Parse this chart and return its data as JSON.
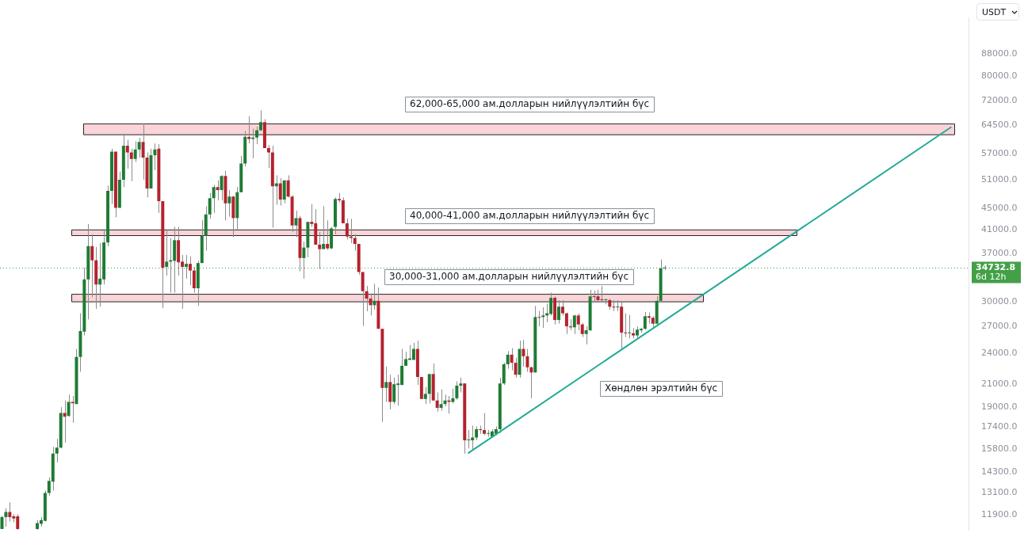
{
  "chart_data": {
    "type": "candlestick",
    "categories": [
      null,
      null,
      null,
      null,
      null,
      null,
      null,
      null,
      null,
      null,
      null,
      null,
      null,
      null,
      null,
      null,
      null,
      null,
      null,
      null,
      null,
      null,
      null,
      null,
      null,
      null,
      null,
      null,
      null,
      null,
      null,
      null,
      null,
      null,
      null,
      null,
      null,
      null,
      null,
      null,
      null,
      null,
      null,
      null,
      null,
      null,
      null,
      null,
      null,
      null,
      null,
      null,
      null,
      null,
      null,
      null,
      null,
      null,
      null,
      null,
      null,
      null,
      null,
      null,
      null,
      null,
      null,
      null,
      null,
      null,
      null,
      null,
      null,
      null,
      null,
      null,
      null,
      null,
      null,
      null,
      null,
      null,
      null,
      null,
      null,
      null,
      null,
      null,
      null,
      null,
      null,
      null,
      null,
      null,
      null,
      null,
      null,
      null,
      null,
      null,
      null,
      null,
      null,
      null,
      null,
      null,
      null,
      null,
      null,
      null,
      null,
      null,
      null,
      null,
      null,
      null,
      null,
      null,
      null,
      null,
      null,
      null,
      null,
      null,
      null,
      null,
      null,
      null,
      null,
      null,
      null,
      null,
      null,
      null,
      null,
      null,
      null,
      null,
      null,
      null,
      null,
      null,
      null,
      null,
      null,
      null,
      null,
      null,
      null,
      null,
      null,
      null,
      null,
      null,
      null,
      null,
      null,
      null,
      null,
      null,
      null,
      null,
      null,
      null,
      null,
      null,
      null,
      null,
      null,
      null,
      null,
      null,
      null,
      null,
      null,
      null,
      null,
      null,
      null,
      null,
      null,
      null,
      null,
      null,
      null,
      null,
      null,
      null,
      null,
      null,
      null,
      null,
      null,
      null,
      null,
      null,
      null,
      null,
      null,
      null,
      null,
      null,
      null,
      null,
      null,
      null,
      null,
      null,
      null,
      null,
      null,
      null,
      null,
      null,
      null,
      null,
      null,
      null,
      null,
      null,
      null,
      null,
      null,
      null,
      null,
      null,
      null,
      null,
      null,
      null,
      null,
      null,
      null,
      null,
      null,
      null,
      null,
      null,
      null,
      null,
      null,
      null,
      null,
      null,
      null,
      null,
      null
    ],
    "ohlc": [
      [
        11180,
        11840,
        11180,
        11770
      ],
      [
        11770,
        12230,
        11290,
        12040
      ],
      [
        12040,
        12550,
        11550,
        11770
      ],
      [
        11810,
        11920,
        11510,
        11700
      ],
      [
        11810,
        11920,
        11150,
        11180
      ],
      null,
      null,
      null,
      null,
      [
        11180,
        11620,
        11150,
        11470
      ],
      [
        11430,
        11770,
        11290,
        11620
      ],
      [
        11580,
        13210,
        11550,
        13080
      ],
      [
        13080,
        13990,
        12920,
        13780
      ],
      [
        13730,
        15970,
        13210,
        15510
      ],
      [
        15510,
        16540,
        14930,
        15920
      ],
      [
        15920,
        18980,
        15870,
        18500
      ],
      [
        18500,
        19540,
        16270,
        18210
      ],
      [
        18270,
        20050,
        18210,
        19420
      ],
      [
        19420,
        19920,
        17740,
        19300
      ],
      [
        19240,
        24450,
        19240,
        23610
      ],
      [
        23610,
        28540,
        22140,
        26420
      ],
      [
        26360,
        34800,
        25920,
        33070
      ],
      [
        33070,
        42070,
        27800,
        38210
      ],
      [
        38210,
        40220,
        30610,
        35930
      ],
      [
        35930,
        38090,
        29090,
        32340
      ],
      [
        32340,
        38700,
        29370,
        33180
      ],
      [
        33070,
        41120,
        32340,
        38830
      ],
      [
        38830,
        49710,
        38210,
        48600
      ],
      [
        48600,
        58350,
        45870,
        57610
      ],
      [
        57610,
        57610,
        43300,
        45130
      ],
      [
        45130,
        52810,
        45130,
        51000
      ],
      [
        51000,
        61830,
        49390,
        59100
      ],
      [
        59100,
        60640,
        53510,
        57420
      ],
      [
        57420,
        58350,
        50670,
        55790
      ],
      [
        55790,
        60250,
        55070,
        58170
      ],
      [
        58170,
        61190,
        56150,
        60060
      ],
      [
        60060,
        65070,
        51000,
        56150
      ],
      [
        56150,
        57420,
        47210,
        49070
      ],
      [
        49070,
        58350,
        49070,
        56700
      ],
      [
        56700,
        59680,
        53170,
        58170
      ],
      [
        58350,
        59490,
        44140,
        46450
      ],
      [
        46450,
        46450,
        29180,
        34800
      ],
      [
        34920,
        40870,
        33610,
        35720
      ],
      [
        35720,
        39590,
        31220,
        35950
      ],
      [
        35840,
        41540,
        31220,
        39210
      ],
      [
        39210,
        41540,
        33610,
        35610
      ],
      [
        35720,
        36760,
        29090,
        34920
      ],
      [
        34920,
        36760,
        33180,
        35380
      ],
      [
        35380,
        36530,
        32240,
        34370
      ],
      [
        34370,
        34920,
        31220,
        31820
      ],
      [
        31820,
        35840,
        29470,
        35500
      ],
      [
        35500,
        42750,
        35500,
        39960
      ],
      [
        39960,
        45440,
        37470,
        43850
      ],
      [
        43850,
        48140,
        43020,
        47060
      ],
      [
        47060,
        49870,
        44140,
        49390
      ],
      [
        49390,
        50840,
        46620,
        48750
      ],
      [
        48750,
        51980,
        46620,
        51820
      ],
      [
        51820,
        53000,
        42740,
        46020
      ],
      [
        46020,
        48750,
        43440,
        47370
      ],
      [
        47370,
        47520,
        39710,
        43160
      ],
      [
        43160,
        49390,
        41120,
        48290
      ],
      [
        48290,
        56510,
        48290,
        54710
      ],
      [
        54710,
        63010,
        54030,
        61430
      ],
      [
        61430,
        67190,
        59680,
        60840
      ],
      [
        60840,
        63640,
        55970,
        61230
      ],
      [
        61230,
        64240,
        59490,
        63230
      ],
      [
        63230,
        68930,
        63020,
        65500
      ],
      [
        65500,
        66340,
        58520,
        58520
      ],
      [
        58520,
        59300,
        53680,
        57420
      ],
      [
        57420,
        59100,
        41400,
        49550
      ],
      [
        49550,
        51980,
        45720,
        50180
      ],
      [
        50180,
        51330,
        45570,
        46770
      ],
      [
        46770,
        50840,
        46020,
        50840
      ],
      [
        50840,
        51980,
        47210,
        47370
      ],
      [
        47370,
        47680,
        40610,
        41800
      ],
      [
        41800,
        44580,
        39710,
        43160
      ],
      [
        43160,
        43580,
        34250,
        36290
      ],
      [
        36290,
        38960,
        33180,
        37970
      ],
      [
        37970,
        42460,
        36410,
        42460
      ],
      [
        42460,
        45870,
        41540,
        42070
      ],
      [
        42200,
        44860,
        38460,
        38460
      ],
      [
        38460,
        40610,
        34590,
        37720
      ],
      [
        37720,
        45440,
        37720,
        38580
      ],
      [
        38580,
        42740,
        37600,
        37840
      ],
      [
        37840,
        41540,
        37720,
        41260
      ],
      [
        41540,
        47210,
        40220,
        46920
      ],
      [
        46920,
        48140,
        46170,
        46620
      ],
      [
        46620,
        47210,
        42200,
        42200
      ],
      [
        42200,
        43020,
        39330,
        39840
      ],
      [
        39840,
        43020,
        38700,
        39590
      ],
      [
        39590,
        40220,
        37470,
        38580
      ],
      [
        38580,
        38580,
        33720,
        34140
      ],
      [
        34140,
        34140,
        27010,
        31420
      ],
      [
        31420,
        32140,
        28800,
        30420
      ],
      [
        30420,
        31120,
        28270,
        29560
      ],
      [
        29560,
        32450,
        29000,
        30130
      ],
      [
        30130,
        31930,
        26680,
        26680
      ],
      [
        26680,
        26680,
        17800,
        20640
      ],
      [
        20640,
        22650,
        19420,
        21170
      ],
      [
        21170,
        21850,
        18800,
        19420
      ],
      [
        19420,
        21580,
        19240,
        20970
      ],
      [
        20900,
        21850,
        19110,
        21040
      ],
      [
        20900,
        24450,
        20900,
        22720
      ],
      [
        22720,
        24140,
        22720,
        23390
      ],
      [
        23310,
        24870,
        23310,
        23460
      ],
      [
        23310,
        25100,
        23310,
        24450
      ],
      [
        24450,
        25340,
        20900,
        21640
      ],
      [
        21640,
        21640,
        19670,
        19670
      ],
      [
        19670,
        20700,
        19240,
        20110
      ],
      [
        20110,
        21920,
        19300,
        21920
      ],
      [
        21920,
        22940,
        19540,
        19540
      ],
      [
        19540,
        20240,
        18620,
        18920
      ],
      [
        18920,
        20500,
        18680,
        19240
      ],
      [
        19240,
        20050,
        19050,
        19540
      ],
      [
        19540,
        19920,
        18450,
        19420
      ],
      [
        19420,
        20570,
        19300,
        19730
      ],
      [
        19730,
        21240,
        19610,
        20840
      ],
      [
        20840,
        21580,
        20240,
        21040
      ],
      [
        21040,
        21040,
        15510,
        16430
      ],
      [
        16430,
        17190,
        15870,
        16480
      ],
      [
        16430,
        17520,
        15770,
        16640
      ],
      [
        16640,
        17460,
        16430,
        17240
      ],
      [
        17240,
        17520,
        16910,
        17190
      ],
      [
        17190,
        18500,
        16810,
        16910
      ],
      [
        16910,
        17190,
        16700,
        16970
      ],
      [
        16700,
        17240,
        16640,
        17080
      ],
      [
        16910,
        17460,
        16810,
        17240
      ],
      [
        17240,
        21580,
        16970,
        21040
      ],
      [
        21040,
        23020,
        20900,
        22870
      ],
      [
        22870,
        24220,
        22430,
        23840
      ],
      [
        23840,
        24530,
        22280,
        23020
      ],
      [
        23020,
        23530,
        21580,
        21850
      ],
      [
        21850,
        25340,
        21580,
        24450
      ],
      [
        24450,
        25420,
        22650,
        23680
      ],
      [
        23680,
        24450,
        22140,
        22570
      ],
      [
        22570,
        22650,
        19730,
        22070
      ],
      [
        22070,
        29470,
        22070,
        28080
      ],
      [
        28080,
        28820,
        26970,
        27990
      ],
      [
        28080,
        29280,
        26770,
        28270
      ],
      [
        28270,
        29750,
        27450,
        28540
      ],
      [
        28450,
        31220,
        28270,
        30520
      ],
      [
        30520,
        30720,
        27190,
        27720
      ],
      [
        27720,
        30220,
        27280,
        29370
      ],
      [
        29370,
        30220,
        28270,
        28540
      ],
      [
        28540,
        28630,
        26080,
        26970
      ],
      [
        26970,
        27810,
        26510,
        26850
      ],
      [
        26850,
        28360,
        26080,
        28270
      ],
      [
        28270,
        28540,
        26510,
        27190
      ],
      [
        27190,
        27370,
        25750,
        26080
      ],
      [
        26080,
        26970,
        24940,
        26510
      ],
      [
        26510,
        31620,
        26420,
        30720
      ],
      [
        30720,
        31520,
        29940,
        30620
      ],
      [
        30720,
        31620,
        29940,
        30220
      ],
      [
        30320,
        32140,
        29940,
        30220
      ],
      [
        30220,
        30420,
        29660,
        30320
      ],
      [
        30220,
        30420,
        29000,
        29370
      ],
      [
        29370,
        30220,
        28820,
        29280
      ],
      [
        29280,
        30220,
        28820,
        29370
      ],
      [
        29370,
        29940,
        24450,
        26250
      ],
      [
        26250,
        28540,
        25750,
        26170
      ],
      [
        26170,
        28360,
        25590,
        26250
      ],
      [
        26170,
        26770,
        25590,
        25920
      ],
      [
        25920,
        26970,
        25590,
        26590
      ],
      [
        26510,
        26770,
        26250,
        26680
      ],
      [
        26680,
        28720,
        26590,
        28180
      ],
      [
        28180,
        28630,
        27280,
        27990
      ],
      [
        27990,
        28180,
        26770,
        27280
      ],
      [
        27280,
        30720,
        27190,
        30130
      ],
      [
        30130,
        36060,
        30130,
        34700
      ],
      [
        34700,
        35150,
        34480,
        34732.8
      ],
      null,
      null,
      null,
      null,
      null,
      null,
      null,
      null,
      null,
      null,
      null,
      null,
      null,
      null,
      null,
      null,
      null,
      null,
      null,
      null,
      null,
      null,
      null,
      null,
      null,
      null,
      null,
      null,
      null,
      null,
      null,
      null,
      null,
      null,
      null,
      null,
      null,
      null,
      null,
      null,
      null,
      null,
      null,
      null,
      null,
      null,
      null,
      null,
      null,
      null,
      null,
      null,
      null,
      null,
      null,
      null,
      null,
      null,
      null,
      null,
      null,
      null,
      null,
      null,
      null,
      null,
      null,
      null,
      null,
      null,
      null,
      null,
      null,
      null,
      null,
      null,
      null
    ],
    "colors": [
      "#1e7b34",
      "#1e7b34",
      "#b3222d",
      "#b3222d",
      "#b3222d",
      null,
      null,
      null,
      null,
      "#1e7b34",
      "#1e7b34",
      "#1e7b34",
      "#1e7b34",
      "#1e7b34",
      "#1e7b34",
      "#1e7b34",
      "#b3222d",
      "#1e7b34",
      "#b3222d",
      "#1e7b34",
      "#1e7b34",
      "#1e7b34",
      "#1e7b34",
      "#b3222d",
      "#b3222d",
      "#1e7b34",
      "#1e7b34",
      "#1e7b34",
      "#1e7b34",
      "#b3222d",
      "#1e7b34",
      "#1e7b34",
      "#b3222d",
      "#b3222d",
      "#1e7b34",
      "#1e7b34",
      "#b3222d",
      "#b3222d",
      "#1e7b34",
      "#1e7b34",
      "#b3222d",
      "#b3222d",
      "#1e7b34",
      "#1e7b34",
      "#1e7b34",
      "#b3222d",
      "#b3222d",
      "#1e7b34",
      "#b3222d",
      "#b3222d",
      "#1e7b34",
      "#1e7b34",
      "#1e7b34",
      "#1e7b34",
      "#1e7b34",
      "#b3222d",
      "#1e7b34",
      "#b3222d",
      "#1e7b34",
      "#b3222d",
      "#1e7b34",
      "#1e7b34",
      "#1e7b34",
      "#b3222d",
      "#1e7b34",
      "#1e7b34",
      "#1e7b34",
      "#b3222d",
      "#b3222d",
      "#b3222d",
      "#1e7b34",
      "#b3222d",
      "#1e7b34",
      "#b3222d",
      "#b3222d",
      "#1e7b34",
      "#b3222d",
      "#1e7b34",
      "#1e7b34",
      "#b3222d",
      "#b3222d",
      "#b3222d",
      "#1e7b34",
      "#b3222d",
      "#1e7b34",
      "#1e7b34",
      "#b3222d",
      "#b3222d",
      "#b3222d",
      "#b3222d",
      "#b3222d",
      "#b3222d",
      "#b3222d",
      "#b3222d",
      "#b3222d",
      "#1e7b34",
      "#b3222d",
      "#b3222d",
      "#1e7b34",
      "#b3222d",
      "#1e7b34",
      "#1e7b34",
      "#1e7b34",
      "#1e7b34",
      "#1e7b34",
      "#1e7b34",
      "#b3222d",
      "#b3222d",
      "#1e7b34",
      "#1e7b34",
      "#b3222d",
      "#b3222d",
      "#1e7b34",
      "#1e7b34",
      "#b3222d",
      "#1e7b34",
      "#1e7b34",
      "#1e7b34",
      "#b3222d",
      "#1e7b34",
      "#1e7b34",
      "#1e7b34",
      "#b3222d",
      "#b3222d",
      "#1e7b34",
      "#1e7b34",
      "#1e7b34",
      "#1e7b34",
      "#1e7b34",
      "#1e7b34",
      "#b3222d",
      "#b3222d",
      "#1e7b34",
      "#b3222d",
      "#b3222d",
      "#b3222d",
      "#1e7b34",
      "#b3222d",
      "#1e7b34",
      "#1e7b34",
      "#1e7b34",
      "#b3222d",
      "#1e7b34",
      "#b3222d",
      "#b3222d",
      "#b3222d",
      "#1e7b34",
      "#b3222d",
      "#b3222d",
      "#1e7b34",
      "#1e7b34",
      "#b3222d",
      "#b3222d",
      "#b3222d",
      "#1e7b34",
      "#b3222d",
      "#b3222d",
      "#1e7b34",
      "#b3222d",
      "#b3222d",
      "#1e7b34",
      "#b3222d",
      "#1e7b34",
      "#1e7b34",
      "#1e7b34",
      "#b3222d",
      "#b3222d",
      "#1e7b34",
      "#1e7b34",
      "#1e7b34",
      null,
      null,
      null,
      null,
      null,
      null,
      null,
      null,
      null,
      null,
      null,
      null,
      null,
      null,
      null,
      null,
      null,
      null,
      null,
      null,
      null,
      null,
      null,
      null,
      null,
      null,
      null,
      null,
      null,
      null,
      null,
      null,
      null,
      null,
      null,
      null,
      null,
      null,
      null,
      null,
      null,
      null,
      null,
      null,
      null,
      null,
      null,
      null,
      null,
      null,
      null,
      null,
      null,
      null,
      null,
      null,
      null,
      null,
      null,
      null,
      null,
      null,
      null,
      null,
      null,
      null,
      null,
      null,
      null,
      null,
      null,
      null,
      null,
      null,
      null,
      null,
      null
    ],
    "series": [
      {
        "type": "line",
        "color": "#22ab94",
        "values": [
          null,
          null,
          null,
          null,
          null,
          null,
          null,
          null,
          null,
          null,
          null,
          null,
          null,
          null,
          null,
          null,
          null,
          null,
          null,
          null,
          null,
          null,
          null,
          null,
          null,
          null,
          null,
          null,
          null,
          null,
          null,
          null,
          null,
          null,
          null,
          null,
          null,
          null,
          null,
          null,
          null,
          null,
          null,
          null,
          null,
          null,
          null,
          null,
          null,
          null,
          null,
          null,
          null,
          null,
          null,
          null,
          null,
          null,
          null,
          null,
          null,
          null,
          null,
          null,
          null,
          null,
          null,
          null,
          null,
          null,
          null,
          null,
          null,
          null,
          null,
          null,
          null,
          null,
          null,
          null,
          null,
          null,
          null,
          null,
          null,
          null,
          null,
          null,
          null,
          null,
          null,
          null,
          null,
          null,
          null,
          null,
          null,
          null,
          null,
          null,
          null,
          null,
          null,
          null,
          null,
          null,
          null,
          null,
          null,
          null,
          null,
          null,
          null,
          null,
          null,
          null,
          null,
          null,
          null,
          15560,
          null,
          null,
          null,
          null,
          null,
          null,
          null,
          null,
          null,
          null,
          null,
          null,
          null,
          null,
          null,
          null,
          null,
          null,
          null,
          null,
          null,
          null,
          null,
          null,
          null,
          null,
          null,
          null,
          null,
          null,
          null,
          null,
          null,
          null,
          null,
          null,
          null,
          null,
          null,
          null,
          null,
          null,
          null,
          null,
          null,
          null,
          null,
          null,
          null,
          null,
          null,
          null,
          null,
          null,
          null,
          null,
          null,
          null,
          null,
          null,
          null,
          null,
          null,
          null,
          null,
          null,
          null,
          null,
          null,
          null,
          null,
          null,
          null,
          null,
          null,
          null,
          null,
          null,
          null,
          null,
          null,
          null,
          null,
          null,
          null,
          null,
          null,
          null,
          null,
          null,
          null,
          null,
          null,
          null,
          null,
          null,
          null,
          null,
          null,
          null,
          null,
          null,
          null,
          null,
          null,
          null,
          null,
          null,
          null,
          null,
          null,
          null,
          null,
          null,
          null,
          null,
          null,
          null,
          null,
          null,
          null,
          null,
          64040,
          null,
          null,
          null,
          null
        ]
      }
    ],
    "log": true,
    "ylim": [
      11126,
      103000
    ],
    "yticks": [
      {
        "value": 11900,
        "label": "11900.0"
      },
      {
        "value": 13100,
        "label": "13100.0"
      },
      {
        "value": 14300,
        "label": "14300.0"
      },
      {
        "value": 15800,
        "label": "15800.0"
      },
      {
        "value": 17400,
        "label": "17400.0"
      },
      {
        "value": 19000,
        "label": "19000.0"
      },
      {
        "value": 21000,
        "label": "21000.0"
      },
      {
        "value": 24000,
        "label": "24000.0"
      },
      {
        "value": 27000,
        "label": "27000.0"
      },
      {
        "value": 30000,
        "label": "30000.0"
      },
      {
        "value": 37000,
        "label": "37000.0"
      },
      {
        "value": 41000,
        "label": "41000.0"
      },
      {
        "value": 45000,
        "label": "45000.0"
      },
      {
        "value": 51000,
        "label": "51000.0"
      },
      {
        "value": 57000,
        "label": "57000.0"
      },
      {
        "value": 64500,
        "label": "64500.0"
      },
      {
        "value": 72000,
        "label": "72000.0"
      },
      {
        "value": 80000,
        "label": "80000.0"
      },
      {
        "value": 88000,
        "label": "88000.0"
      }
    ],
    "tick_labels": "y",
    "bands": [
      {
        "axis": "y",
        "from": 62000,
        "to": 65000,
        "label": "62,000-65,000 ам.долларын нийлүүлэлтийн бүс",
        "color": "#f9d4d8"
      },
      {
        "axis": "y",
        "from": 40000,
        "to": 41000,
        "label": "40,000-41,000 ам.долларын нийлүүлэлтийн бүс",
        "color": "#f9d4d8"
      },
      {
        "axis": "y",
        "from": 30000,
        "to": 31000,
        "label": "30,000-31,000 ам.долларын нийлүүлэлтийн бүс",
        "color": "#f9d4d8"
      }
    ],
    "ref_lines": [
      {
        "axis": "y",
        "value": 34732.8,
        "label": "34732.8",
        "color": "#43a047",
        "line_style": "dotted"
      }
    ],
    "annotations": [
      "Хөндлөн эрэлтийн бүс",
      "6d 12h",
      "USDT"
    ]
  }
}
